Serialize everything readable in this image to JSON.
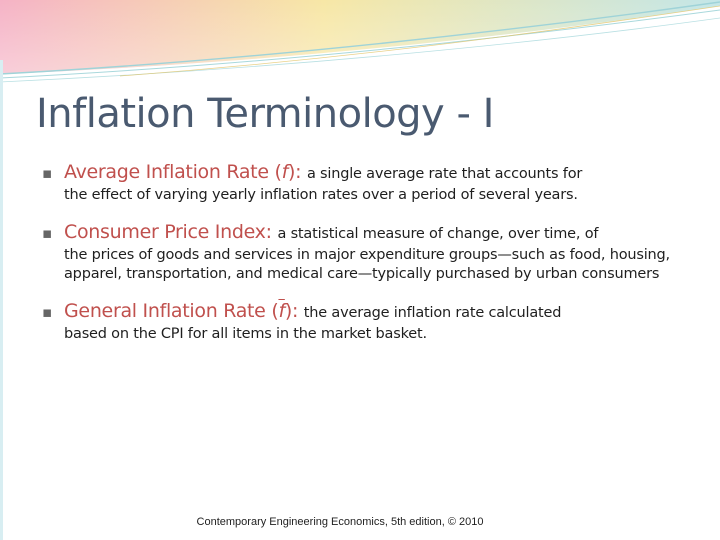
{
  "slide": {
    "title": "Inflation Terminology - I",
    "bullets": [
      {
        "term": "Average Inflation Rate (",
        "symbol": "f",
        "term_close": "):",
        "definition": "a single average rate that accounts for",
        "continuation": "the effect of varying yearly inflation rates over a period of several years."
      },
      {
        "term": "Consumer Price Index:",
        "definition": "a statistical measure of change, over time, of",
        "continuation": "the prices of goods and services in major expenditure groups—such as food, housing, apparel, transportation, and medical care—typically purchased by urban consumers"
      },
      {
        "term": "General Inflation Rate (",
        "symbol": "f",
        "term_close": "):",
        "definition": "the average inflation rate calculated",
        "continuation": "based on the CPI for all items in the market basket."
      }
    ],
    "bullet_marker": "▪",
    "footer": "Contemporary Engineering Economics, 5th edition, © 2010"
  },
  "colors": {
    "term_text": "#c0504d",
    "title_text": "#4a5a70",
    "banner_pink": "#f4b6c8",
    "banner_yellow": "#f6f0a8",
    "banner_teal": "#bfe3e6"
  }
}
